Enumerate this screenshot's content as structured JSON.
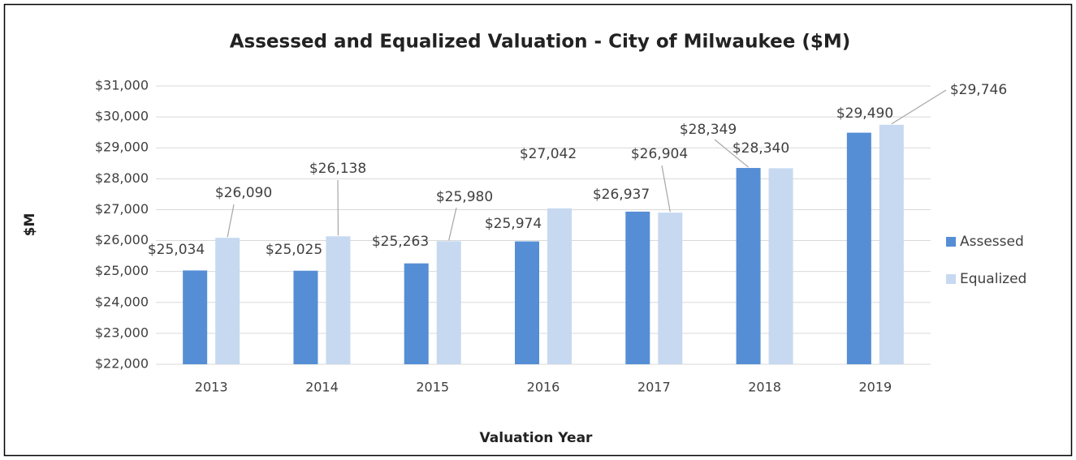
{
  "chart_data": {
    "type": "bar",
    "title": "Assessed and Equalized Valuation - City of Milwaukee ($M)",
    "x_label": "Valuation Year",
    "y_label": "$M",
    "categories": [
      "2013",
      "2014",
      "2015",
      "2016",
      "2017",
      "2018",
      "2019"
    ],
    "series": [
      {
        "name": "Assessed",
        "color": "#558ed5",
        "values": [
          25034,
          25025,
          25263,
          25974,
          26937,
          28349,
          29490
        ],
        "value_labels": [
          "$25,034",
          "$25,025",
          "$25,263",
          "$25,974",
          "$26,937",
          "$28,349",
          "$29,490"
        ]
      },
      {
        "name": "Equalized",
        "color": "#c6d9f0",
        "values": [
          26090,
          26138,
          25980,
          27042,
          26904,
          28340,
          29746
        ],
        "value_labels": [
          "$26,090",
          "$26,138",
          "$25,980",
          "$27,042",
          "$26,904",
          "$28,340",
          "$29,746"
        ]
      }
    ],
    "ylim": [
      22000,
      31000
    ],
    "yticks": [
      {
        "value": 22000,
        "label": "$22,000"
      },
      {
        "value": 23000,
        "label": "$23,000"
      },
      {
        "value": 24000,
        "label": "$24,000"
      },
      {
        "value": 25000,
        "label": "$25,000"
      },
      {
        "value": 26000,
        "label": "$26,000"
      },
      {
        "value": 27000,
        "label": "$27,000"
      },
      {
        "value": 28000,
        "label": "$28,000"
      },
      {
        "value": 29000,
        "label": "$29,000"
      },
      {
        "value": 30000,
        "label": "$30,000"
      },
      {
        "value": 31000,
        "label": "$31,000"
      }
    ],
    "grid": true,
    "legend": "right"
  }
}
